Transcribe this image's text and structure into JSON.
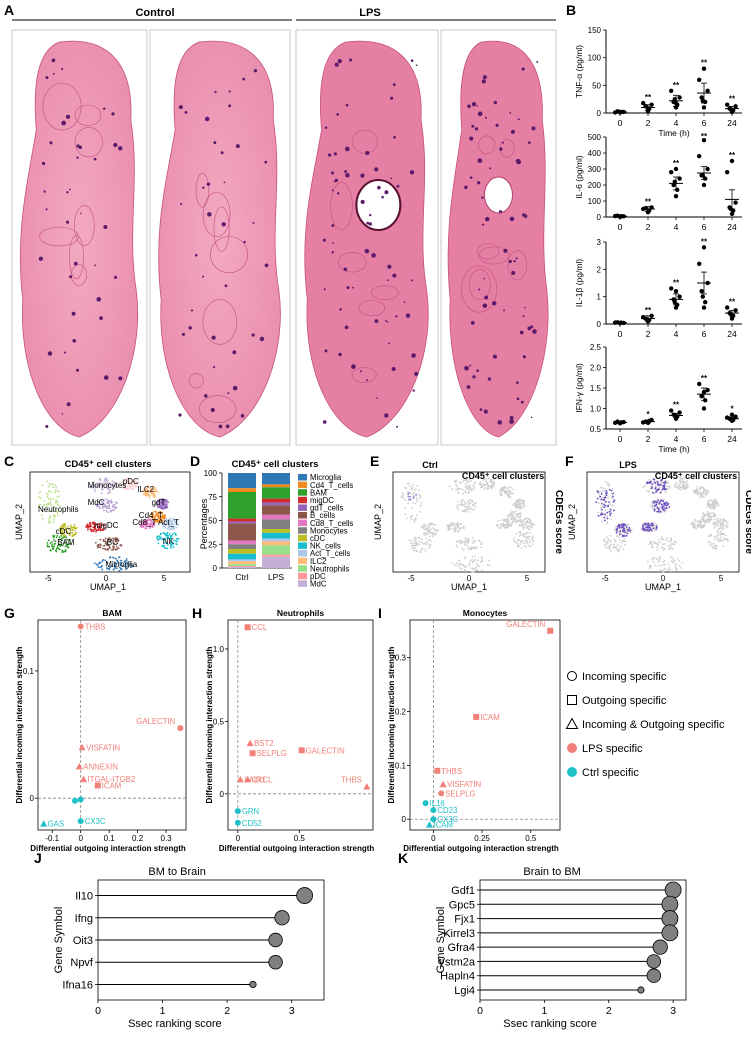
{
  "panels": {
    "A": {
      "letter": "A",
      "group1": "Control",
      "group2": "LPS"
    },
    "B": {
      "letter": "B"
    },
    "C": {
      "letter": "C",
      "title": "CD45⁺ cell clusters",
      "xlabel": "UMAP_1",
      "ylabel": "UMAP_2",
      "labels": [
        "Neutrophils",
        "Monocytes",
        "pDC",
        "ILC2",
        "MdC",
        "gdT",
        "Cd4_T",
        "Cd8_T",
        "Act_T",
        "migDC",
        "cDC",
        "BAM",
        "BC",
        "NK",
        "Microglia"
      ]
    },
    "D": {
      "letter": "D",
      "title": "CD45⁺ cell clusters",
      "ylabel": "Percentages"
    },
    "E": {
      "letter": "E",
      "title": "Ctrl",
      "subtitle": "CD45⁺ cell clusters",
      "side": "CDEGs score",
      "xlabel": "UMAP_1",
      "ylabel": "UMAP_2"
    },
    "F": {
      "letter": "F",
      "title": "LPS",
      "subtitle": "CD45⁺ cell clusters",
      "side": "CDEGs score",
      "xlabel": "UMAP_1",
      "ylabel": "UMAP_2"
    },
    "G": {
      "letter": "G"
    },
    "H": {
      "letter": "H"
    },
    "I": {
      "letter": "I"
    },
    "J": {
      "letter": "J"
    },
    "K": {
      "letter": "K"
    }
  },
  "legend_shapes": {
    "items": [
      {
        "shape": "circle",
        "label": "Incoming specific"
      },
      {
        "shape": "square",
        "label": "Outgoing specific"
      },
      {
        "shape": "triangle",
        "label": "Incoming & Outgoing specific"
      },
      {
        "shape": "dot-red",
        "label": "LPS specific"
      },
      {
        "shape": "dot-cyan",
        "label": "Ctrl specific"
      }
    ],
    "colors": {
      "lps": "#f08078",
      "ctrl": "#20c0c8"
    }
  },
  "chart_data": [
    {
      "id": "B1",
      "type": "scatter",
      "ylabel": "TNF-α (pg/ml)",
      "xlabel": "Time (h)",
      "categories": [
        "0",
        "2",
        "4",
        "6",
        "24"
      ],
      "ylim": [
        0,
        150
      ],
      "yticks": [
        0,
        50,
        100,
        150
      ],
      "means": [
        2,
        10,
        22,
        36,
        8
      ],
      "errs": [
        1,
        5,
        10,
        18,
        4
      ],
      "stars": [
        "",
        "**",
        "**",
        "**",
        "**"
      ],
      "points": [
        [
          1,
          2,
          3,
          2,
          1,
          2
        ],
        [
          3,
          8,
          12,
          15,
          18,
          6
        ],
        [
          10,
          15,
          20,
          28,
          40,
          18,
          25
        ],
        [
          10,
          20,
          28,
          40,
          60,
          80,
          22
        ],
        [
          2,
          5,
          8,
          12,
          15,
          4
        ]
      ]
    },
    {
      "id": "B2",
      "type": "scatter",
      "ylabel": "IL-6 (pg/ml)",
      "categories": [
        "0",
        "2",
        "4",
        "6",
        "24"
      ],
      "ylim": [
        0,
        500
      ],
      "yticks": [
        0,
        100,
        200,
        300,
        400,
        500
      ],
      "means": [
        5,
        50,
        210,
        275,
        110
      ],
      "errs": [
        3,
        15,
        40,
        40,
        60
      ],
      "stars": [
        "",
        "**",
        "**",
        "**",
        "**"
      ],
      "points": [
        [
          2,
          5,
          8,
          4,
          6
        ],
        [
          30,
          40,
          55,
          60,
          50
        ],
        [
          130,
          170,
          200,
          240,
          280,
          300,
          220
        ],
        [
          200,
          240,
          260,
          300,
          380,
          480,
          260
        ],
        [
          20,
          40,
          60,
          90,
          280,
          350,
          50
        ]
      ]
    },
    {
      "id": "B3",
      "type": "scatter",
      "ylabel": "IL-1β (pg/ml)",
      "categories": [
        "0",
        "2",
        "4",
        "6",
        "24"
      ],
      "ylim": [
        0,
        3
      ],
      "yticks": [
        0,
        1,
        2,
        3
      ],
      "means": [
        0.05,
        0.2,
        0.9,
        1.5,
        0.4
      ],
      "errs": [
        0.02,
        0.1,
        0.2,
        0.4,
        0.1
      ],
      "stars": [
        "",
        "**",
        "**",
        "**",
        "**"
      ],
      "points": [
        [
          0.03,
          0.05,
          0.06,
          0.04,
          0.05
        ],
        [
          0.1,
          0.15,
          0.2,
          0.3,
          0.25
        ],
        [
          0.6,
          0.7,
          0.9,
          1.0,
          1.3,
          1.2,
          0.8
        ],
        [
          0.6,
          0.8,
          1.2,
          1.5,
          2.2,
          2.8,
          1.0
        ],
        [
          0.2,
          0.3,
          0.4,
          0.5,
          0.6,
          0.3
        ]
      ]
    },
    {
      "id": "B4",
      "type": "scatter",
      "ylabel": "IFN-γ (pg/ml)",
      "xlabel": "Time (h)",
      "categories": [
        "0",
        "2",
        "4",
        "6",
        "24"
      ],
      "ylim": [
        0.5,
        2.5
      ],
      "yticks": [
        0.5,
        1.0,
        1.5,
        2.0,
        2.5
      ],
      "means": [
        0.66,
        0.68,
        0.83,
        1.35,
        0.75
      ],
      "errs": [
        0.02,
        0.03,
        0.05,
        0.15,
        0.04
      ],
      "stars": [
        "",
        "*",
        "**",
        "**",
        "*"
      ],
      "points": [
        [
          0.64,
          0.66,
          0.68,
          0.67,
          0.65
        ],
        [
          0.65,
          0.7,
          0.68,
          0.72,
          0.66
        ],
        [
          0.75,
          0.8,
          0.85,
          0.9,
          0.95,
          0.82
        ],
        [
          1.0,
          1.2,
          1.3,
          1.45,
          1.6,
          1.4
        ],
        [
          0.7,
          0.72,
          0.75,
          0.8,
          0.78,
          0.85,
          0.74
        ]
      ]
    },
    {
      "id": "D",
      "type": "bar",
      "categories": [
        "Ctrl",
        "LPS"
      ],
      "ylim": [
        0,
        100
      ],
      "yticks": [
        0,
        25,
        50,
        75,
        100
      ],
      "series": [
        {
          "name": "Microglia",
          "color": "#2f78b5",
          "values": [
            16,
            12
          ]
        },
        {
          "name": "Cd4_T_cells",
          "color": "#f08a22",
          "values": [
            4,
            3
          ]
        },
        {
          "name": "BAM",
          "color": "#2ea02c",
          "values": [
            28,
            12
          ]
        },
        {
          "name": "migDC",
          "color": "#d12b2b",
          "values": [
            3,
            4
          ]
        },
        {
          "name": "gdT_cells",
          "color": "#9467bd",
          "values": [
            2,
            3
          ]
        },
        {
          "name": "B_cells",
          "color": "#8c564b",
          "values": [
            18,
            10
          ]
        },
        {
          "name": "Cd8_T_cells",
          "color": "#e377c2",
          "values": [
            4,
            5
          ]
        },
        {
          "name": "Monocytes",
          "color": "#7f7f7f",
          "values": [
            5,
            10
          ]
        },
        {
          "name": "cDC",
          "color": "#bcbd22",
          "values": [
            5,
            4
          ]
        },
        {
          "name": "NK_cells",
          "color": "#17becf",
          "values": [
            6,
            6
          ]
        },
        {
          "name": "Act_T_cells",
          "color": "#aec7e8",
          "values": [
            2,
            3
          ]
        },
        {
          "name": "ILC2",
          "color": "#ffbb78",
          "values": [
            3,
            4
          ]
        },
        {
          "name": "Neutrophils",
          "color": "#98df8a",
          "values": [
            2,
            10
          ]
        },
        {
          "name": "pDC",
          "color": "#ff9896",
          "values": [
            1,
            2
          ]
        },
        {
          "name": "MdC",
          "color": "#c5b0d5",
          "values": [
            1,
            12
          ]
        }
      ]
    },
    {
      "id": "G",
      "type": "scatter",
      "title": "BAM",
      "xlabel": "Differential outgoing interaction strength",
      "ylabel": "Differential incoming interaction strength",
      "xlim": [
        -0.15,
        0.37
      ],
      "ylim": [
        -0.025,
        0.14
      ],
      "xticks": [
        -0.1,
        0,
        0.1,
        0.2,
        0.3
      ],
      "xticklabels": [
        "-0.1",
        "0",
        "0.1",
        "0.2",
        "0.3"
      ],
      "yticks": [
        0,
        0.1
      ],
      "yticklabels": [
        "0",
        "0.1"
      ],
      "points": [
        {
          "label": "THBS",
          "x": 0,
          "y": 0.135,
          "shape": "circle",
          "group": "lps"
        },
        {
          "label": "GALECTIN",
          "x": 0.35,
          "y": 0.055,
          "shape": "circle",
          "group": "lps"
        },
        {
          "label": "VISFATIN",
          "x": 0.005,
          "y": 0.04,
          "shape": "triangle",
          "group": "lps"
        },
        {
          "label": "ANNEXIN",
          "x": -0.005,
          "y": 0.025,
          "shape": "triangle",
          "group": "lps"
        },
        {
          "label": "ITGAL-ITGB2",
          "x": 0.01,
          "y": 0.015,
          "shape": "triangle",
          "group": "lps"
        },
        {
          "label": "ICAM",
          "x": 0.06,
          "y": 0.01,
          "shape": "square",
          "group": "lps"
        },
        {
          "label": "GAS",
          "x": -0.13,
          "y": -0.02,
          "shape": "triangle",
          "group": "ctrl"
        },
        {
          "label": "CX3C",
          "x": 0,
          "y": -0.018,
          "shape": "circle",
          "group": "ctrl"
        },
        {
          "label": "",
          "x": -0.02,
          "y": -0.002,
          "shape": "circle",
          "group": "ctrl"
        },
        {
          "label": "",
          "x": 0.0,
          "y": -0.001,
          "shape": "circle",
          "group": "ctrl"
        }
      ]
    },
    {
      "id": "H",
      "type": "scatter",
      "title": "Neutrophils",
      "xlabel": "Differential outgoing interaction strength",
      "ylabel": "Differential incoming interaction strength",
      "xlim": [
        -0.08,
        1.1
      ],
      "ylim": [
        -0.25,
        1.2
      ],
      "xticks": [
        0,
        0.5
      ],
      "xticklabels": [
        "0",
        "0.5"
      ],
      "yticks": [
        0,
        0.5,
        1.0
      ],
      "yticklabels": [
        "0",
        "0.5",
        "1.0"
      ],
      "points": [
        {
          "label": "CCL",
          "x": 0.08,
          "y": 1.15,
          "shape": "square",
          "group": "lps"
        },
        {
          "label": "BST2",
          "x": 0.1,
          "y": 0.35,
          "shape": "triangle",
          "group": "lps"
        },
        {
          "label": "SELPLG",
          "x": 0.12,
          "y": 0.28,
          "shape": "square",
          "group": "lps"
        },
        {
          "label": "GALECTIN",
          "x": 0.52,
          "y": 0.3,
          "shape": "square",
          "group": "lps"
        },
        {
          "label": "LAIR1",
          "x": 0.02,
          "y": 0.1,
          "shape": "triangle",
          "group": "lps"
        },
        {
          "label": "CXCL",
          "x": 0.08,
          "y": 0.1,
          "shape": "triangle",
          "group": "lps"
        },
        {
          "label": "THBS",
          "x": 1.05,
          "y": 0.05,
          "shape": "triangle",
          "group": "lps"
        },
        {
          "label": "GRN",
          "x": 0.0,
          "y": -0.12,
          "shape": "circle",
          "group": "ctrl"
        },
        {
          "label": "CD52",
          "x": 0.0,
          "y": -0.2,
          "shape": "circle",
          "group": "ctrl"
        }
      ]
    },
    {
      "id": "I",
      "type": "scatter",
      "title": "Monocytes",
      "xlabel": "Differential outgoing interaction strength",
      "ylabel": "Differential incoming interaction strength",
      "xlim": [
        -0.12,
        0.65
      ],
      "ylim": [
        -0.02,
        0.37
      ],
      "xticks": [
        0,
        0.25,
        0.5
      ],
      "xticklabels": [
        "0",
        "0.25",
        "0.5"
      ],
      "yticks": [
        0,
        0.1,
        0.2,
        0.3
      ],
      "yticklabels": [
        "0",
        "0.1",
        "0.2",
        "0.3"
      ],
      "points": [
        {
          "label": "GALECTIN",
          "x": 0.6,
          "y": 0.35,
          "shape": "square",
          "group": "lps"
        },
        {
          "label": "ICAM",
          "x": 0.22,
          "y": 0.19,
          "shape": "square",
          "group": "lps"
        },
        {
          "label": "THBS",
          "x": 0.02,
          "y": 0.09,
          "shape": "square",
          "group": "lps"
        },
        {
          "label": "VISFATIN",
          "x": 0.05,
          "y": 0.065,
          "shape": "triangle",
          "group": "lps"
        },
        {
          "label": "SELPLG",
          "x": 0.04,
          "y": 0.048,
          "shape": "circle",
          "group": "lps"
        },
        {
          "label": "IL16",
          "x": -0.04,
          "y": 0.03,
          "shape": "circle",
          "group": "ctrl"
        },
        {
          "label": "CD23",
          "x": 0.0,
          "y": 0.017,
          "shape": "circle",
          "group": "ctrl"
        },
        {
          "label": "CX3C",
          "x": 0.0,
          "y": 0.0,
          "shape": "circle",
          "group": "ctrl"
        },
        {
          "label": "ICAM",
          "x": -0.02,
          "y": -0.01,
          "shape": "triangle",
          "group": "ctrl"
        }
      ]
    },
    {
      "id": "J",
      "type": "lollipop",
      "title": "BM to Brain",
      "xlabel": "Ssec ranking score",
      "ylabel": "Gene Symbol",
      "xlim": [
        0,
        3.5
      ],
      "xticks": [
        0,
        1,
        2,
        3
      ],
      "categories": [
        "Il10",
        "Ifng",
        "Oit3",
        "Npvf",
        "Ifna16"
      ],
      "values": [
        3.2,
        2.85,
        2.75,
        2.75,
        2.4
      ],
      "sizes": [
        3,
        2.6,
        2.4,
        2.4,
        0.6
      ]
    },
    {
      "id": "K",
      "type": "lollipop",
      "title": "Brain to BM",
      "xlabel": "Ssec ranking score",
      "ylabel": "Gene Symbol",
      "xlim": [
        0,
        3.2
      ],
      "xticks": [
        0,
        1,
        2,
        3
      ],
      "categories": [
        "Gdf1",
        "Gpc5",
        "Fjx1",
        "Kirrel3",
        "Gfra4",
        "Vstm2a",
        "Hapln4",
        "Lgi4"
      ],
      "values": [
        3.0,
        2.95,
        2.95,
        2.95,
        2.8,
        2.7,
        2.7,
        2.5
      ],
      "sizes": [
        3,
        3,
        3,
        3,
        2.6,
        2.4,
        2.4,
        0.6
      ]
    }
  ]
}
